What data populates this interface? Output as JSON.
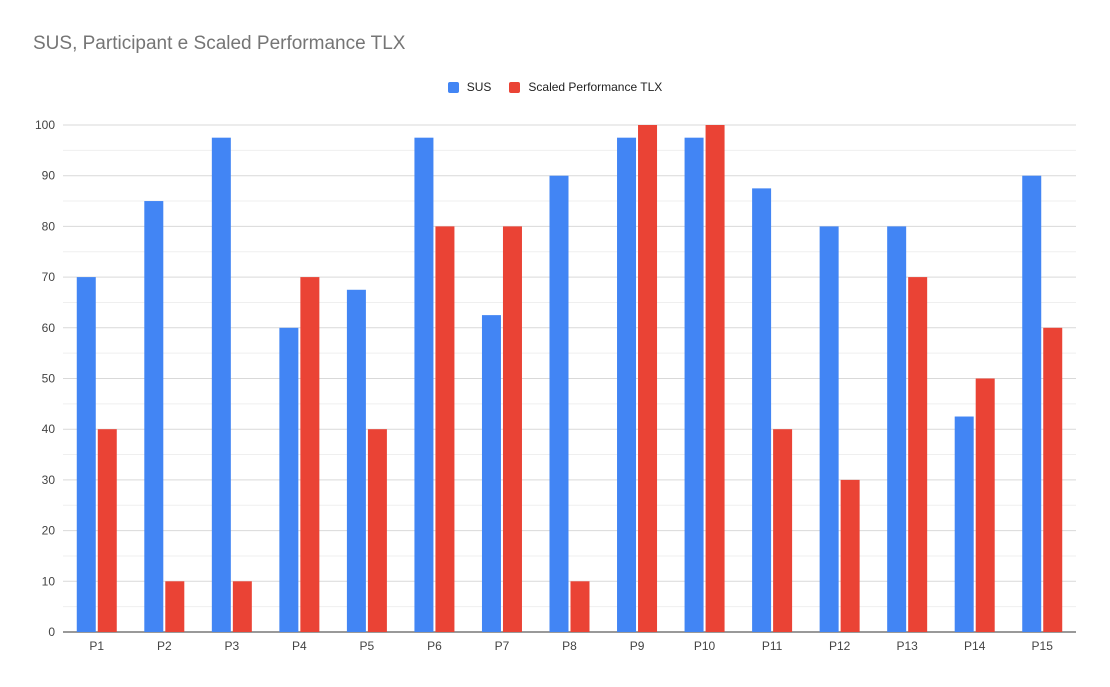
{
  "chart_data": {
    "type": "bar",
    "title": "SUS, Participant e Scaled Performance TLX",
    "xlabel": "",
    "ylabel": "",
    "categories": [
      "P1",
      "P2",
      "P3",
      "P4",
      "P5",
      "P6",
      "P7",
      "P8",
      "P9",
      "P10",
      "P11",
      "P12",
      "P13",
      "P14",
      "P15"
    ],
    "series": [
      {
        "name": "SUS",
        "color": "#4285f4",
        "values": [
          70,
          85,
          97.5,
          60,
          67.5,
          97.5,
          62.5,
          90,
          97.5,
          97.5,
          87.5,
          80,
          80,
          42.5,
          90
        ]
      },
      {
        "name": "Scaled Performance TLX",
        "color": "#ea4335",
        "values": [
          40,
          10,
          10,
          70,
          40,
          80,
          80,
          10,
          100,
          100,
          40,
          30,
          70,
          50,
          60
        ]
      }
    ],
    "ylim": [
      0,
      100
    ],
    "yticks": [
      0,
      10,
      20,
      30,
      40,
      50,
      60,
      70,
      80,
      90,
      100
    ],
    "grid": true,
    "legend_position": "top-center"
  }
}
